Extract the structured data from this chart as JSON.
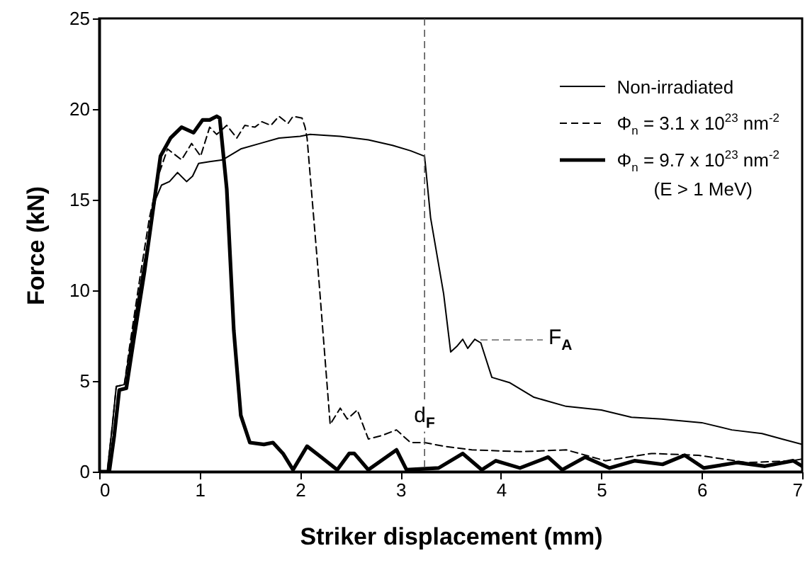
{
  "chart_data": {
    "type": "line",
    "xlabel": "Striker displacement (mm)",
    "ylabel": "Force (kN)",
    "xlim": [
      0,
      7
    ],
    "xticks": [
      0,
      1,
      2,
      3,
      4,
      5,
      6,
      7
    ],
    "ylim": [
      0,
      25
    ],
    "yticks": [
      0,
      5,
      10,
      15,
      20,
      25
    ],
    "legend": "top right",
    "grid": false,
    "series": [
      {
        "name": "Non-irradiated",
        "color": "#000000",
        "line_style": "solid",
        "x": [
          0,
          0.08,
          0.13,
          0.17,
          0.25,
          0.3,
          0.4,
          0.5,
          0.56,
          0.62,
          0.7,
          0.78,
          0.87,
          0.93,
          0.99,
          1.1,
          1.23,
          1.41,
          1.6,
          1.79,
          2.0,
          2.1,
          2.4,
          2.68,
          2.92,
          3.1,
          3.24,
          3.3,
          3.43,
          3.5,
          3.56,
          3.62,
          3.67,
          3.74,
          3.8,
          3.91,
          4.09,
          4.33,
          4.65,
          5.0,
          5.3,
          5.6,
          6.0,
          6.3,
          6.6,
          6.8,
          7.0
        ],
        "values": [
          0,
          0,
          2.5,
          4.7,
          4.8,
          6.5,
          10,
          13.2,
          15,
          15.8,
          16.0,
          16.5,
          16.0,
          16.3,
          17.0,
          17.1,
          17.2,
          17.8,
          18.1,
          18.4,
          18.5,
          18.6,
          18.5,
          18.3,
          18.0,
          17.7,
          17.4,
          14,
          9.8,
          6.6,
          6.9,
          7.3,
          6.8,
          7.3,
          7.1,
          5.2,
          4.9,
          4.1,
          3.6,
          3.4,
          3.0,
          2.9,
          2.7,
          2.3,
          2.1,
          1.8,
          1.5
        ]
      },
      {
        "name": "Φ$_{n}$ = 3.1 x 10$^{23}$ nm$^{-2}$",
        "color": "#000000",
        "line_style": "dashed",
        "x": [
          0,
          0.08,
          0.13,
          0.17,
          0.25,
          0.3,
          0.4,
          0.5,
          0.6,
          0.68,
          0.82,
          0.92,
          1.01,
          1.1,
          1.17,
          1.27,
          1.37,
          1.45,
          1.55,
          1.62,
          1.71,
          1.79,
          1.88,
          1.93,
          2.02,
          2.05,
          2.07,
          2.19,
          2.3,
          2.4,
          2.47,
          2.57,
          2.68,
          2.82,
          2.96,
          3.1,
          3.24,
          3.43,
          3.71,
          4.19,
          4.65,
          5.04,
          5.5,
          5.97,
          6.45,
          6.91,
          7.0
        ],
        "values": [
          0,
          0,
          2.5,
          4.7,
          4.8,
          6.8,
          10.5,
          14,
          16.5,
          17.8,
          17.2,
          18.1,
          17.4,
          19.0,
          18.6,
          19.1,
          18.4,
          19.1,
          19.0,
          19.3,
          19.1,
          19.6,
          19.2,
          19.6,
          19.5,
          19.0,
          18.4,
          10.4,
          2.6,
          3.5,
          2.9,
          3.4,
          1.8,
          2.0,
          2.3,
          1.6,
          1.6,
          1.4,
          1.2,
          1.1,
          1.2,
          0.6,
          1.0,
          0.9,
          0.5,
          0.6,
          0.7
        ]
      },
      {
        "name": "Φ$_{n}$ = 9.7 x 10$^{23}$ nm$^{-2}$",
        "color": "#000000",
        "line_style": "solid",
        "x": [
          0,
          0.1,
          0.15,
          0.2,
          0.27,
          0.35,
          0.45,
          0.55,
          0.61,
          0.71,
          0.82,
          0.94,
          1.03,
          1.1,
          1.17,
          1.2,
          1.27,
          1.34,
          1.41,
          1.5,
          1.64,
          1.73,
          1.83,
          1.93,
          2.07,
          2.21,
          2.37,
          2.49,
          2.54,
          2.68,
          2.96,
          3.06,
          3.38,
          3.62,
          3.81,
          3.95,
          4.19,
          4.47,
          4.61,
          4.84,
          5.08,
          5.33,
          5.61,
          5.83,
          6.02,
          6.35,
          6.63,
          6.91,
          7.0
        ],
        "values": [
          0,
          0,
          2,
          4.5,
          4.6,
          7.5,
          11,
          15,
          17.4,
          18.4,
          19.0,
          18.7,
          19.4,
          19.4,
          19.6,
          19.5,
          15.6,
          7.8,
          3.1,
          1.6,
          1.5,
          1.6,
          1.0,
          0.1,
          1.4,
          0.8,
          0.1,
          1.0,
          1.0,
          0.1,
          1.2,
          0.1,
          0.2,
          1.0,
          0.1,
          0.6,
          0.2,
          0.8,
          0.1,
          0.8,
          0.2,
          0.6,
          0.4,
          0.9,
          0.2,
          0.5,
          0.3,
          0.6,
          0.3
        ]
      }
    ],
    "ref_lines": [
      {
        "axis": "x",
        "value": 3.24,
        "label": "d$_{F}$",
        "line_style": "dashed",
        "color": "#555555"
      }
    ],
    "annotations": [
      {
        "text": "F$_{A}$",
        "x": 3.74,
        "y": 7.3
      },
      "(E > 1 MeV)"
    ]
  }
}
